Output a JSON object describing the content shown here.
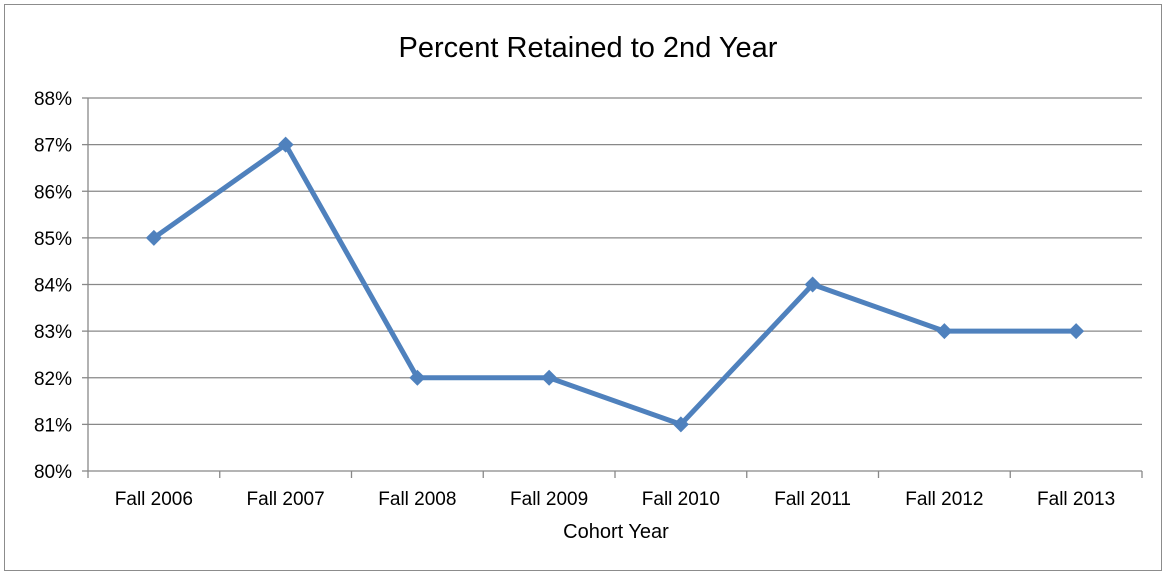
{
  "chart_data": {
    "type": "line",
    "title": "Percent Retained to 2nd Year",
    "xlabel": "Cohort Year",
    "ylabel": "",
    "categories": [
      "Fall 2006",
      "Fall 2007",
      "Fall 2008",
      "Fall 2009",
      "Fall 2010",
      "Fall 2011",
      "Fall 2012",
      "Fall 2013"
    ],
    "series": [
      {
        "values": [
          85,
          87,
          82,
          82,
          81,
          84,
          83,
          83
        ]
      }
    ],
    "ylim": [
      80,
      88
    ],
    "y_ticks": [
      "80%",
      "81%",
      "82%",
      "83%",
      "84%",
      "85%",
      "86%",
      "87%",
      "88%"
    ],
    "y_tick_values": [
      80,
      81,
      82,
      83,
      84,
      85,
      86,
      87,
      88
    ],
    "grid": true,
    "legend": "none",
    "colors": {
      "line": "#4f81bd",
      "grid": "#888888",
      "axis": "#888888"
    }
  }
}
